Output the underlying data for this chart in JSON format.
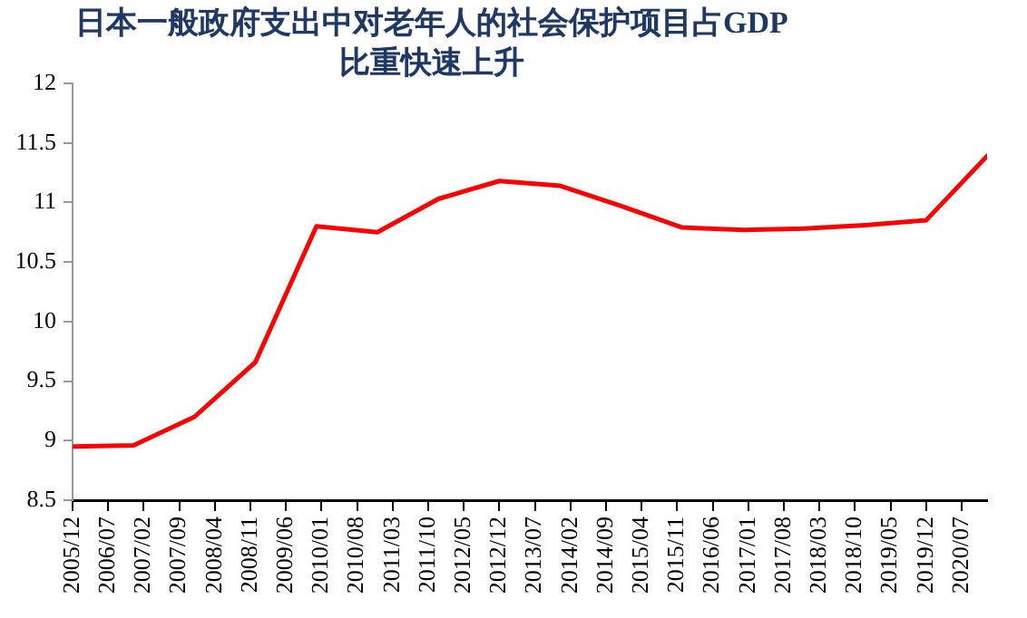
{
  "chart_data": {
    "type": "line",
    "title": "日本一般政府支出中对老年人的社会保护项目占GDP\n比重快速上升",
    "x": [
      "2005-12",
      "2006-12",
      "2007-12",
      "2008-12",
      "2009-12",
      "2010-12",
      "2011-12",
      "2012-12",
      "2013-12",
      "2014-12",
      "2015-12",
      "2016-12",
      "2017-12",
      "2018-12",
      "2019-12",
      "2020-12"
    ],
    "series": [
      {
        "color": "#ff0000",
        "values": [
          8.95,
          8.96,
          9.2,
          9.66,
          10.8,
          10.75,
          11.03,
          11.18,
          11.14,
          10.97,
          10.79,
          10.77,
          10.78,
          10.81,
          10.85,
          11.39
        ]
      }
    ],
    "xlim": [
      "2005-12",
      "2020-12"
    ],
    "xticks": [
      {
        "value": "2005-12",
        "label": "2005/12"
      },
      {
        "value": "2006-07",
        "label": "2006/07"
      },
      {
        "value": "2007-02",
        "label": "2007/02"
      },
      {
        "value": "2007-09",
        "label": "2007/09"
      },
      {
        "value": "2008-04",
        "label": "2008/04"
      },
      {
        "value": "2008-11",
        "label": "2008/11"
      },
      {
        "value": "2009-06",
        "label": "2009/06"
      },
      {
        "value": "2010-01",
        "label": "2010/01"
      },
      {
        "value": "2010-08",
        "label": "2010/08"
      },
      {
        "value": "2011-03",
        "label": "2011/03"
      },
      {
        "value": "2011-10",
        "label": "2011/10"
      },
      {
        "value": "2012-05",
        "label": "2012/05"
      },
      {
        "value": "2012-12",
        "label": "2012/12"
      },
      {
        "value": "2013-07",
        "label": "2013/07"
      },
      {
        "value": "2014-02",
        "label": "2014/02"
      },
      {
        "value": "2014-09",
        "label": "2014/09"
      },
      {
        "value": "2015-04",
        "label": "2015/04"
      },
      {
        "value": "2015-11",
        "label": "2015/11"
      },
      {
        "value": "2016-06",
        "label": "2016/06"
      },
      {
        "value": "2017-01",
        "label": "2017/01"
      },
      {
        "value": "2017-08",
        "label": "2017/08"
      },
      {
        "value": "2018-03",
        "label": "2018/03"
      },
      {
        "value": "2018-10",
        "label": "2018/10"
      },
      {
        "value": "2019-05",
        "label": "2019/05"
      },
      {
        "value": "2019-12",
        "label": "2019/12"
      },
      {
        "value": "2020-07",
        "label": "2020/07"
      }
    ],
    "ylim": [
      8.5,
      12
    ],
    "yticks": [
      8.5,
      9,
      9.5,
      10,
      10.5,
      11,
      11.5,
      12
    ],
    "grid": false,
    "legend": false,
    "marker": "none",
    "line_style": "solid"
  }
}
